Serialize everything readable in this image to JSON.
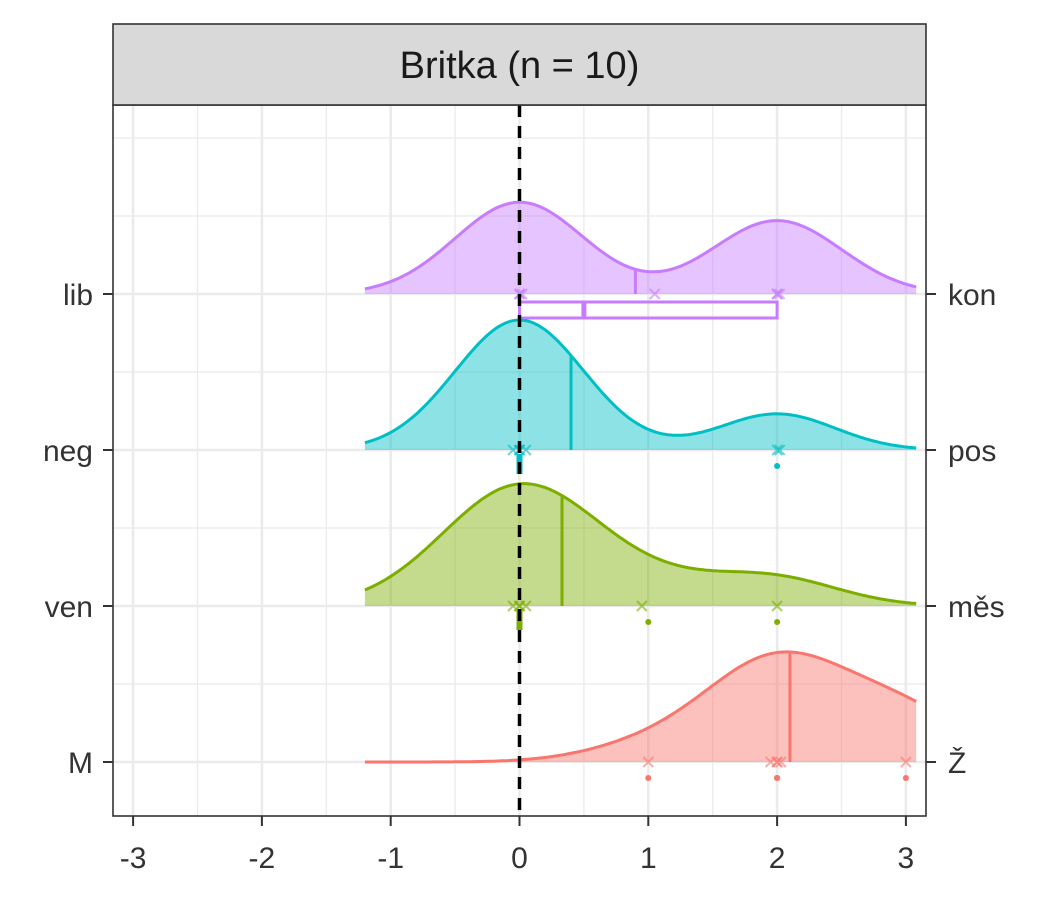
{
  "chart_data": {
    "type": "ridgeline-density",
    "panel_title": "Britka (n = 10)",
    "x_ticks": [
      -3,
      -2,
      -1,
      0,
      1,
      2,
      3
    ],
    "xlim": [
      -3.1,
      3.15
    ],
    "reference_line_x": 0,
    "grid": true,
    "rows": [
      {
        "left_label": "lib",
        "right_label": "kon",
        "color": "#C77CFF",
        "density_peak": 0.6,
        "components": [
          {
            "mu": 0,
            "sigma": 0.5,
            "w": 0.5
          },
          {
            "mu": 2,
            "sigma": 0.5,
            "w": 0.4
          }
        ],
        "mean": 0.9,
        "points": [
          0,
          0,
          0.02,
          1.05,
          2,
          2,
          2.02
        ],
        "boxplot": {
          "q1": 0,
          "median": 0.5,
          "q3": 2
        }
      },
      {
        "left_label": "neg",
        "right_label": "pos",
        "color": "#00BFC4",
        "density_peak": 0.85,
        "components": [
          {
            "mu": 0,
            "sigma": 0.5,
            "w": 0.8
          },
          {
            "mu": 2,
            "sigma": 0.45,
            "w": 0.2
          }
        ],
        "mean": 0.4,
        "points": [
          -0.05,
          0,
          0,
          0.05,
          2,
          2.02
        ],
        "dots": [
          0,
          0,
          0,
          0,
          2
        ]
      },
      {
        "left_label": "ven",
        "right_label": "měs",
        "color": "#7CAE00",
        "density_peak": 0.8,
        "components": [
          {
            "mu": 0,
            "sigma": 0.6,
            "w": 0.75
          },
          {
            "mu": 1.1,
            "sigma": 0.6,
            "w": 0.12
          },
          {
            "mu": 2,
            "sigma": 0.5,
            "w": 0.13
          }
        ],
        "mean": 0.33,
        "points": [
          -0.05,
          0,
          0,
          0.05,
          0.95,
          2
        ],
        "dots": [
          0,
          0,
          0,
          0,
          1,
          2
        ]
      },
      {
        "left_label": "M",
        "right_label": "Ž",
        "color": "#F8766D",
        "density_peak": 0.72,
        "components": [
          {
            "mu": 2,
            "sigma": 0.55,
            "w": 0.6
          },
          {
            "mu": 3,
            "sigma": 0.5,
            "w": 0.25
          },
          {
            "mu": 1,
            "sigma": 0.5,
            "w": 0.08
          }
        ],
        "mean": 2.1,
        "points": [
          1,
          1.95,
          2,
          2,
          2.03,
          3
        ],
        "dots": [
          1,
          2,
          2,
          2,
          3
        ]
      }
    ]
  }
}
